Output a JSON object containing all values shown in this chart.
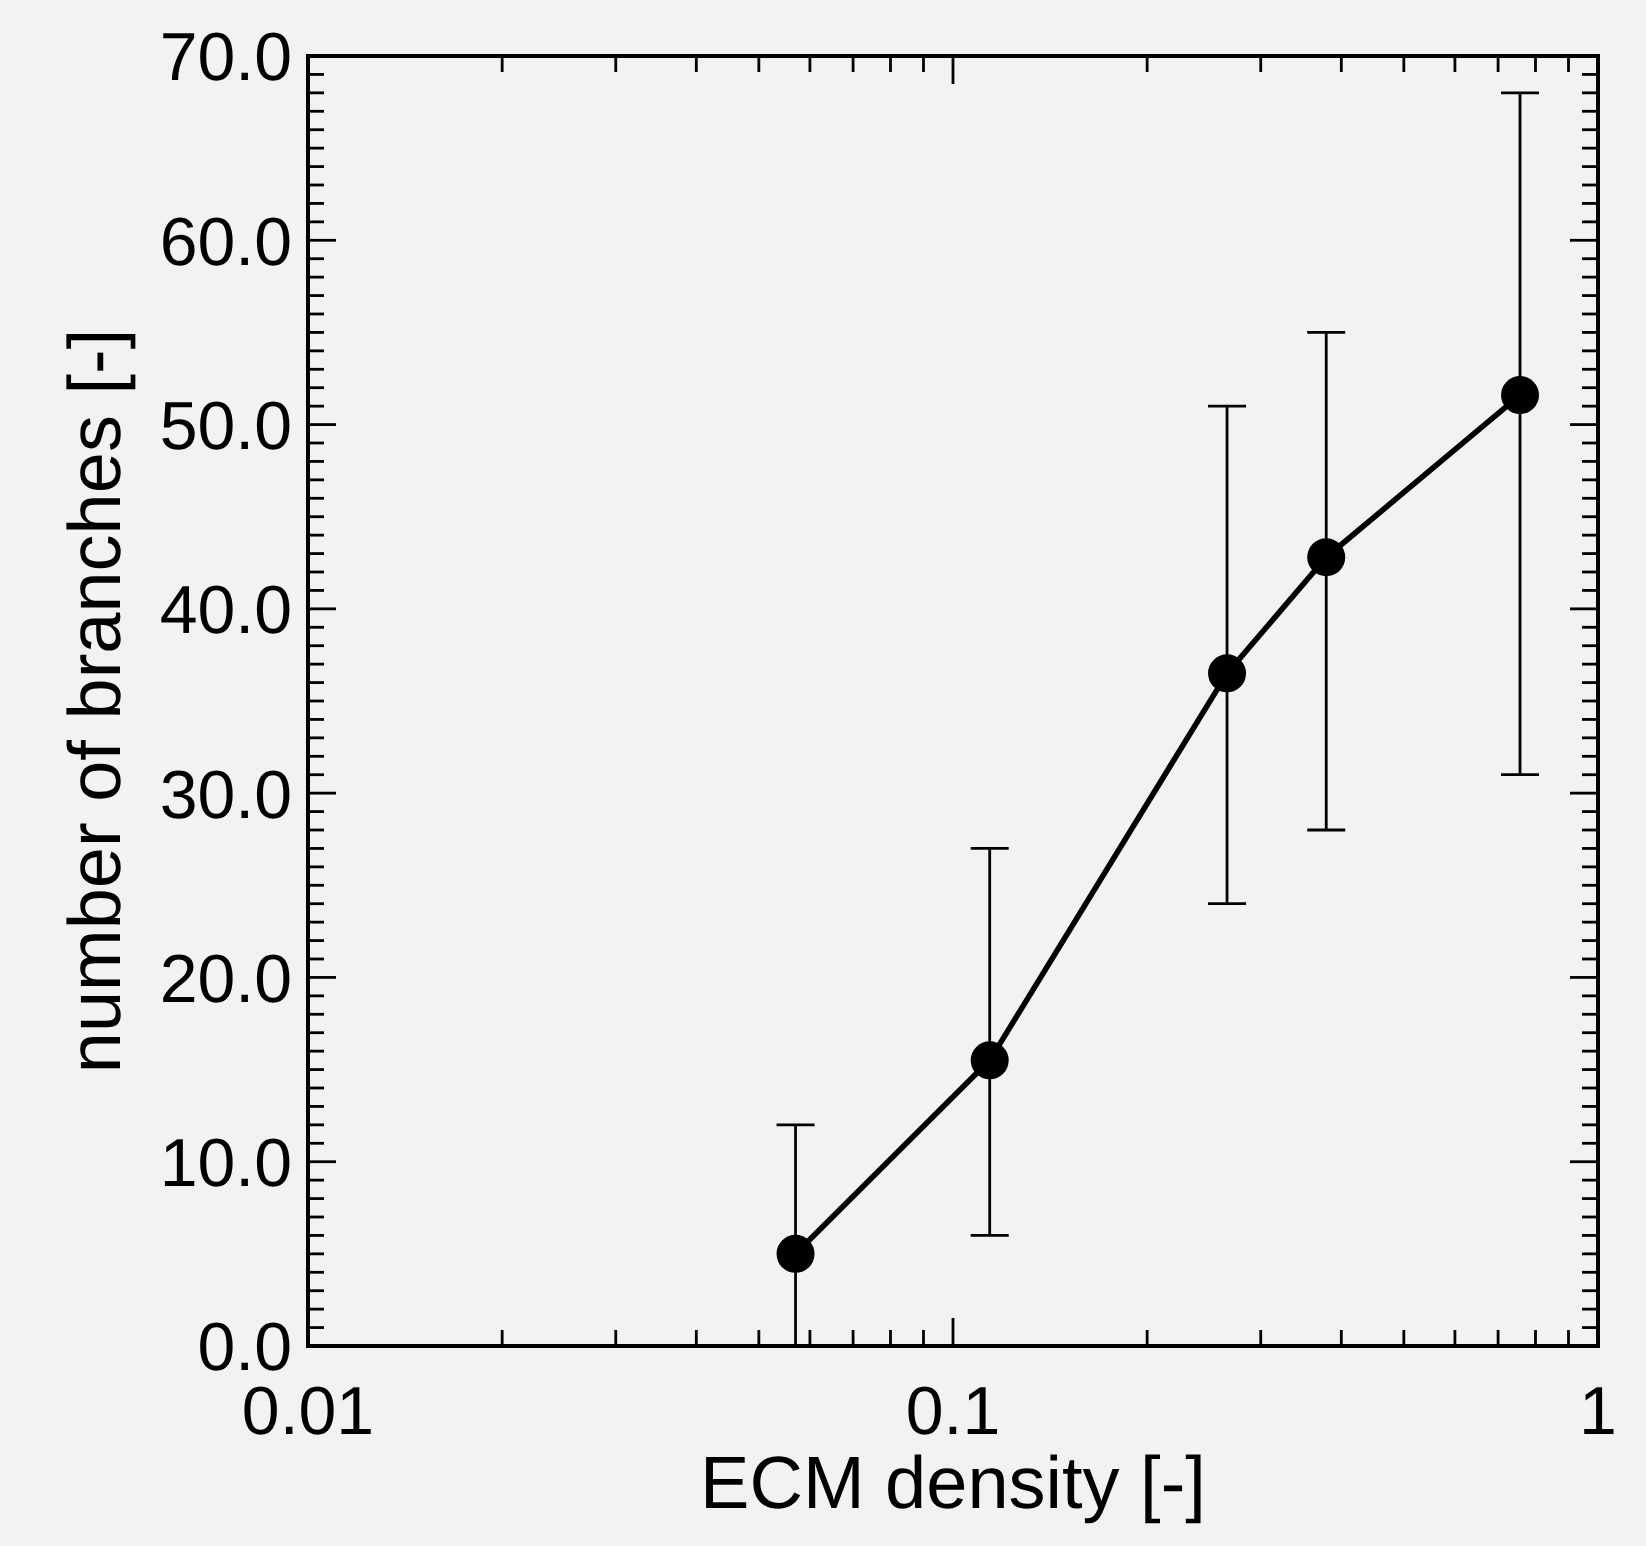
{
  "chart_data": {
    "type": "line",
    "xlabel": "ECM density [-]",
    "ylabel": "number of branches [-]",
    "x": [
      0.057,
      0.114,
      0.266,
      0.379,
      0.757
    ],
    "series": [
      {
        "color": "#000000",
        "values": [
          5.0,
          15.5,
          36.5,
          42.8,
          51.6
        ],
        "errors": [
          [
            0,
            12
          ],
          [
            6,
            27
          ],
          [
            24,
            51
          ],
          [
            28,
            55
          ],
          [
            31,
            68
          ]
        ]
      }
    ],
    "xlim": [
      0.01,
      1
    ],
    "ylim": [
      0,
      70
    ],
    "log": "x",
    "marker": "circle",
    "line_style": "solid",
    "xticks": [
      0.01,
      {
        "value": 0.02,
        "label": null
      },
      {
        "value": 0.03,
        "label": null
      },
      {
        "value": 0.04,
        "label": null
      },
      {
        "value": 0.05,
        "label": null
      },
      {
        "value": 0.06,
        "label": null
      },
      {
        "value": 0.07,
        "label": null
      },
      {
        "value": 0.08,
        "label": null
      },
      {
        "value": 0.09,
        "label": null
      },
      0.1,
      {
        "value": 0.2,
        "label": null
      },
      {
        "value": 0.3,
        "label": null
      },
      {
        "value": 0.4,
        "label": null
      },
      {
        "value": 0.5,
        "label": null
      },
      {
        "value": 0.6,
        "label": null
      },
      {
        "value": 0.7,
        "label": null
      },
      {
        "value": 0.8,
        "label": null
      },
      {
        "value": 0.9,
        "label": null
      },
      1
    ],
    "yticks": [
      {
        "value": 0,
        "label": "0.0"
      },
      {
        "value": 1,
        "label": null
      },
      {
        "value": 2,
        "label": null
      },
      {
        "value": 3,
        "label": null
      },
      {
        "value": 4,
        "label": null
      },
      {
        "value": 5,
        "label": null
      },
      {
        "value": 6,
        "label": null
      },
      {
        "value": 7,
        "label": null
      },
      {
        "value": 8,
        "label": null
      },
      {
        "value": 9,
        "label": null
      },
      {
        "value": 10,
        "label": "10.0"
      },
      {
        "value": 11,
        "label": null
      },
      {
        "value": 12,
        "label": null
      },
      {
        "value": 13,
        "label": null
      },
      {
        "value": 14,
        "label": null
      },
      {
        "value": 15,
        "label": null
      },
      {
        "value": 16,
        "label": null
      },
      {
        "value": 17,
        "label": null
      },
      {
        "value": 18,
        "label": null
      },
      {
        "value": 19,
        "label": null
      },
      {
        "value": 20,
        "label": "20.0"
      },
      {
        "value": 21,
        "label": null
      },
      {
        "value": 22,
        "label": null
      },
      {
        "value": 23,
        "label": null
      },
      {
        "value": 24,
        "label": null
      },
      {
        "value": 25,
        "label": null
      },
      {
        "value": 26,
        "label": null
      },
      {
        "value": 27,
        "label": null
      },
      {
        "value": 28,
        "label": null
      },
      {
        "value": 29,
        "label": null
      },
      {
        "value": 30,
        "label": "30.0"
      },
      {
        "value": 31,
        "label": null
      },
      {
        "value": 32,
        "label": null
      },
      {
        "value": 33,
        "label": null
      },
      {
        "value": 34,
        "label": null
      },
      {
        "value": 35,
        "label": null
      },
      {
        "value": 36,
        "label": null
      },
      {
        "value": 37,
        "label": null
      },
      {
        "value": 38,
        "label": null
      },
      {
        "value": 39,
        "label": null
      },
      {
        "value": 40,
        "label": "40.0"
      },
      {
        "value": 41,
        "label": null
      },
      {
        "value": 42,
        "label": null
      },
      {
        "value": 43,
        "label": null
      },
      {
        "value": 44,
        "label": null
      },
      {
        "value": 45,
        "label": null
      },
      {
        "value": 46,
        "label": null
      },
      {
        "value": 47,
        "label": null
      },
      {
        "value": 48,
        "label": null
      },
      {
        "value": 49,
        "label": null
      },
      {
        "value": 50,
        "label": "50.0"
      },
      {
        "value": 51,
        "label": null
      },
      {
        "value": 52,
        "label": null
      },
      {
        "value": 53,
        "label": null
      },
      {
        "value": 54,
        "label": null
      },
      {
        "value": 55,
        "label": null
      },
      {
        "value": 56,
        "label": null
      },
      {
        "value": 57,
        "label": null
      },
      {
        "value": 58,
        "label": null
      },
      {
        "value": 59,
        "label": null
      },
      {
        "value": 60,
        "label": "60.0"
      },
      {
        "value": 61,
        "label": null
      },
      {
        "value": 62,
        "label": null
      },
      {
        "value": 63,
        "label": null
      },
      {
        "value": 64,
        "label": null
      },
      {
        "value": 65,
        "label": null
      },
      {
        "value": 66,
        "label": null
      },
      {
        "value": 67,
        "label": null
      },
      {
        "value": 68,
        "label": null
      },
      {
        "value": 69,
        "label": null
      },
      {
        "value": 70,
        "label": "70.0"
      }
    ]
  }
}
